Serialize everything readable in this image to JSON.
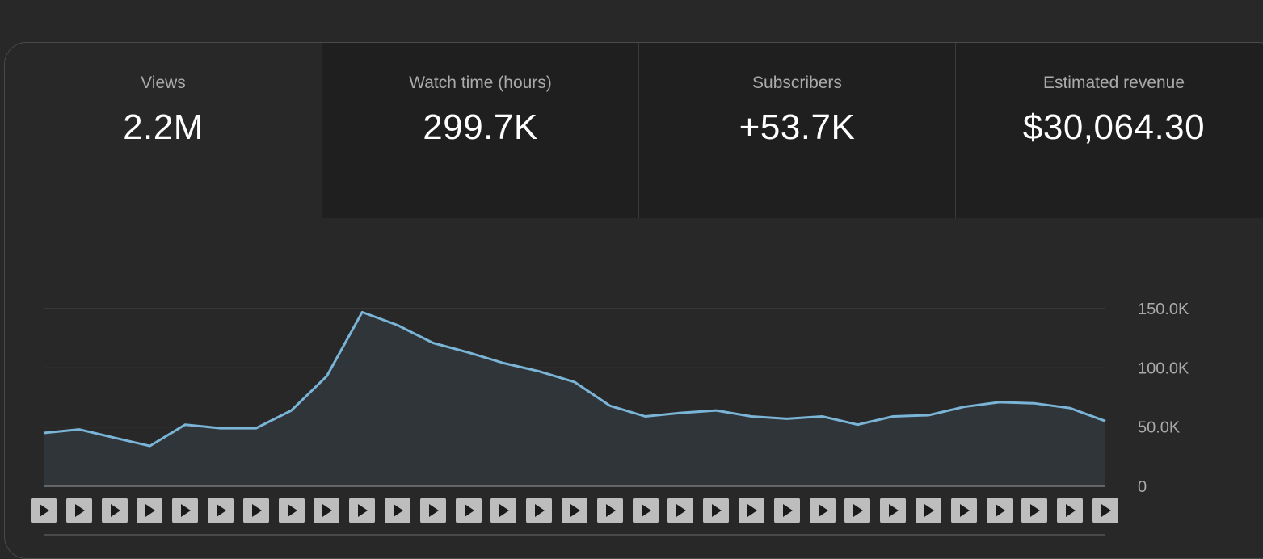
{
  "metrics": [
    {
      "label": "Views",
      "value": "2.2M",
      "active": true
    },
    {
      "label": "Watch time (hours)",
      "value": "299.7K",
      "active": false
    },
    {
      "label": "Subscribers",
      "value": "+53.7K",
      "active": false
    },
    {
      "label": "Estimated revenue",
      "value": "$30,064.30",
      "active": false
    }
  ],
  "colors": {
    "line": "#7ab4d6",
    "fill": "#2f3539",
    "grid": "#444444",
    "axis_text": "#aaaaaa"
  },
  "chart_data": {
    "type": "area",
    "y_ticks": [
      "150.0K",
      "100.0K",
      "50.0K",
      "0"
    ],
    "y_tick_values": [
      150000,
      100000,
      50000,
      0
    ],
    "ylim": [
      0,
      150000
    ],
    "x": [
      1,
      2,
      3,
      4,
      5,
      6,
      7,
      8,
      9,
      10,
      11,
      12,
      13,
      14,
      15,
      16,
      17,
      18,
      19,
      20,
      21,
      22,
      23,
      24,
      25,
      26,
      27,
      28,
      29,
      30,
      31
    ],
    "values": [
      45000,
      48000,
      41000,
      34000,
      52000,
      49000,
      49000,
      64000,
      93000,
      147000,
      136000,
      121000,
      113000,
      104000,
      97000,
      88000,
      68000,
      59000,
      62000,
      64000,
      59000,
      57000,
      59000,
      52000,
      59000,
      60000,
      67000,
      71000,
      70000,
      66000,
      55000
    ],
    "grid": true,
    "video_markers": 31
  }
}
